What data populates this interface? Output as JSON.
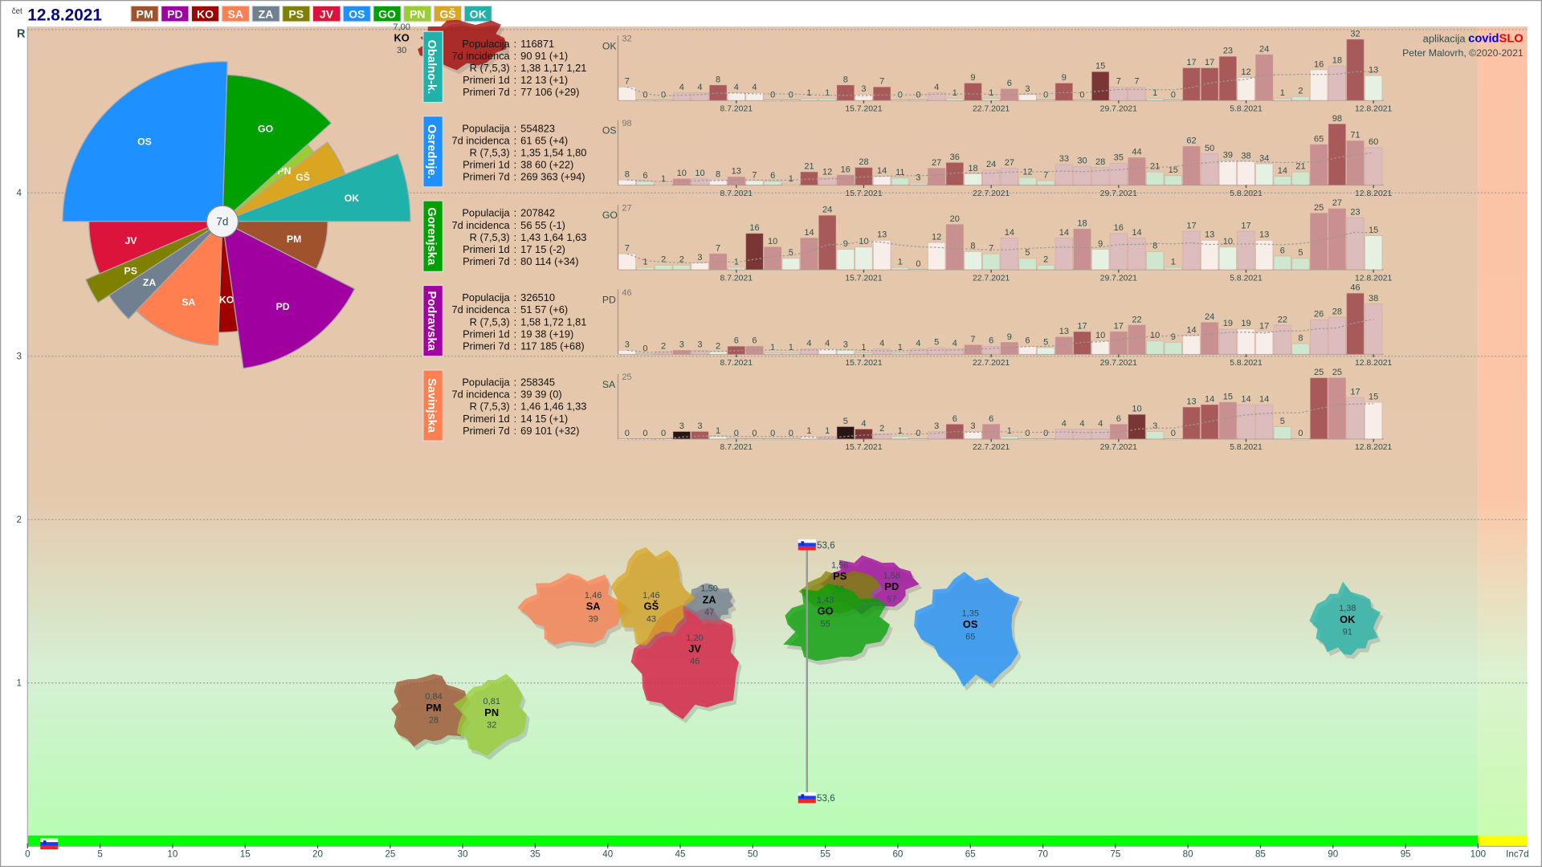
{
  "header": {
    "weekday": "čet",
    "date": "12.8.2021",
    "regions": [
      {
        "code": "PM",
        "color": "#a0522d"
      },
      {
        "code": "PD",
        "color": "#a000a0"
      },
      {
        "code": "KO",
        "color": "#a00000"
      },
      {
        "code": "SA",
        "color": "#ff7f50"
      },
      {
        "code": "ZA",
        "color": "#708090"
      },
      {
        "code": "PS",
        "color": "#808000"
      },
      {
        "code": "JV",
        "color": "#dc143c"
      },
      {
        "code": "OS",
        "color": "#1e90ff"
      },
      {
        "code": "GO",
        "color": "#00a000"
      },
      {
        "code": "PN",
        "color": "#9acd32"
      },
      {
        "code": "GŠ",
        "color": "#daa520"
      },
      {
        "code": "OK",
        "color": "#20b2aa"
      }
    ]
  },
  "credits": {
    "prefix": "aplikacija",
    "app_part1": "covid",
    "app_part2": "SLO",
    "author": "Peter Malovrh, ©2020-2021"
  },
  "info_labels": [
    "Populacija",
    "7d incidenca",
    "R (7,5,3)",
    "Primeri 1d",
    "Primeri 7d"
  ],
  "chart_data": [
    {
      "type": "scatter",
      "ylabel": "R",
      "xlabel": "Inc7d",
      "xlim": [
        0,
        100
      ],
      "ylim": [
        0,
        5
      ],
      "x_ticks": [
        "0",
        "5",
        "10",
        "15",
        "20",
        "25",
        "30",
        "35",
        "40",
        "45",
        "50",
        "55",
        "60",
        "65",
        "70",
        "75",
        "80",
        "85",
        "90",
        "95",
        "100"
      ],
      "y_ticks": [
        "1",
        "2",
        "3",
        "4"
      ],
      "grid": true,
      "points": [
        {
          "code": "KO",
          "R": "7,00",
          "inc": "30",
          "r": 7.0,
          "i": 30
        },
        {
          "code": "PD",
          "R": "1,58",
          "inc": "57",
          "r": 1.58,
          "i": 57
        },
        {
          "code": "PS",
          "R": "1,56",
          "inc": "56",
          "r": 1.56,
          "i": 56
        },
        {
          "code": "GO",
          "R": "1,43",
          "inc": "55",
          "r": 1.43,
          "i": 55
        },
        {
          "code": "OS",
          "R": "1,35",
          "inc": "65",
          "r": 1.35,
          "i": 65
        },
        {
          "code": "OK",
          "R": "1,38",
          "inc": "91",
          "r": 1.38,
          "i": 91
        },
        {
          "code": "JV",
          "R": "1,20",
          "inc": "46",
          "r": 1.2,
          "i": 46
        },
        {
          "code": "SA",
          "R": "1,46",
          "inc": "39",
          "r": 1.46,
          "i": 39
        },
        {
          "code": "ZA",
          "R": "1,50",
          "inc": "47",
          "r": 1.5,
          "i": 47
        },
        {
          "code": "GŠ",
          "R": "1,46",
          "inc": "43",
          "r": 1.46,
          "i": 43
        },
        {
          "code": "PM",
          "R": "0,84",
          "inc": "28",
          "r": 0.84,
          "i": 28
        },
        {
          "code": "PN",
          "R": "0,81",
          "inc": "32",
          "r": 0.81,
          "i": 32
        }
      ],
      "slovenia": {
        "inc": 53.6,
        "label": "53,6"
      }
    },
    {
      "type": "pie",
      "center_label": "7d",
      "top": [
        {
          "code": "OK",
          "share": 11.7,
          "level": 1.0
        },
        {
          "code": "GŠ",
          "share": 8.9,
          "level": 0.7
        },
        {
          "code": "PN",
          "share": 2.8,
          "level": 0.61
        },
        {
          "code": "GO",
          "share": 25.6,
          "level": 0.78
        },
        {
          "code": "OS",
          "share": 51.0,
          "level": 0.85
        }
      ],
      "bottom": [
        {
          "code": "JV",
          "share": 12.8,
          "level": 0.71
        },
        {
          "code": "PS",
          "share": 5.6,
          "level": 0.79
        },
        {
          "code": "ZA",
          "share": 7.2,
          "level": 0.72
        },
        {
          "code": "SA",
          "share": 23.3,
          "level": 0.66
        },
        {
          "code": "KO",
          "share": 5.6,
          "level": 0.59
        },
        {
          "code": "PD",
          "share": 30.5,
          "level": 0.79
        },
        {
          "code": "PM",
          "share": 15.0,
          "level": 0.56
        }
      ]
    },
    {
      "type": "bar",
      "region": "Obalno-k.",
      "code": "OK",
      "color": "#20b2aa",
      "max_label": "32",
      "info": [
        "116871",
        "90 91 (+1)",
        "1,38 1,17 1,21",
        "12 13 (+1)",
        "77 106 (+29)"
      ],
      "date_ticks": [
        "8.7.2021",
        "15.7.2021",
        "22.7.2021",
        "29.7.2021",
        "5.8.2021",
        "12.8.2021"
      ],
      "values": [
        7,
        0,
        0,
        4,
        4,
        8,
        4,
        4,
        0,
        0,
        1,
        1,
        8,
        3,
        7,
        0,
        0,
        4,
        1,
        9,
        1,
        6,
        3,
        0,
        9,
        0,
        15,
        7,
        7,
        1,
        0,
        17,
        17,
        23,
        12,
        24,
        1,
        2,
        16,
        18,
        32,
        13
      ]
    },
    {
      "type": "bar",
      "region": "Osrednje.",
      "code": "OS",
      "color": "#1e90ff",
      "max_label": "98",
      "info": [
        "554823",
        "61 65 (+4)",
        "1,35 1,54 1,80",
        "38 60 (+22)",
        "269 363 (+94)"
      ],
      "date_ticks": [
        "8.7.2021",
        "15.7.2021",
        "22.7.2021",
        "29.7.2021",
        "5.8.2021",
        "12.8.2021"
      ],
      "values": [
        8,
        6,
        1,
        10,
        10,
        8,
        13,
        7,
        6,
        1,
        21,
        12,
        16,
        28,
        14,
        11,
        3,
        27,
        36,
        18,
        24,
        27,
        12,
        7,
        33,
        30,
        28,
        35,
        44,
        21,
        15,
        62,
        50,
        39,
        38,
        34,
        14,
        21,
        65,
        98,
        71,
        60
      ]
    },
    {
      "type": "bar",
      "region": "Gorenjska",
      "code": "GO",
      "color": "#00a000",
      "max_label": "27",
      "info": [
        "207842",
        "56 55 (-1)",
        "1,43 1,64 1,63",
        "17 15 (-2)",
        "80 114 (+34)"
      ],
      "date_ticks": [
        "8.7.2021",
        "15.7.2021",
        "22.7.2021",
        "29.7.2021",
        "5.8.2021",
        "12.8.2021"
      ],
      "values": [
        7,
        1,
        2,
        2,
        3,
        7,
        1,
        16,
        10,
        5,
        14,
        24,
        9,
        10,
        13,
        1,
        0,
        12,
        20,
        8,
        7,
        14,
        5,
        2,
        14,
        18,
        9,
        16,
        14,
        8,
        1,
        17,
        13,
        10,
        17,
        13,
        6,
        5,
        25,
        27,
        23,
        15
      ]
    },
    {
      "type": "bar",
      "region": "Podravska",
      "code": "PD",
      "color": "#a000a0",
      "max_label": "46",
      "info": [
        "326510",
        "51 57 (+6)",
        "1,58 1,72 1,81",
        "19 38 (+19)",
        "117 185 (+68)"
      ],
      "date_ticks": [
        "8.7.2021",
        "15.7.2021",
        "22.7.2021",
        "29.7.2021",
        "5.8.2021",
        "12.8.2021"
      ],
      "values": [
        3,
        0,
        2,
        3,
        3,
        2,
        6,
        6,
        1,
        1,
        4,
        4,
        3,
        1,
        4,
        1,
        4,
        5,
        4,
        7,
        6,
        9,
        6,
        5,
        13,
        17,
        10,
        17,
        22,
        10,
        9,
        14,
        24,
        19,
        19,
        17,
        22,
        8,
        26,
        28,
        46,
        38
      ]
    },
    {
      "type": "bar",
      "region": "Savinjska",
      "code": "SA",
      "color": "#ff7f50",
      "max_label": "25",
      "info": [
        "258345",
        "39 39 (0)",
        "1,46 1,46 1,33",
        "14 15 (+1)",
        "69 101 (+32)"
      ],
      "date_ticks": [
        "8.7.2021",
        "15.7.2021",
        "22.7.2021",
        "29.7.2021",
        "5.8.2021",
        "12.8.2021"
      ],
      "values": [
        0,
        0,
        0,
        3,
        3,
        1,
        0,
        0,
        0,
        0,
        1,
        1,
        5,
        4,
        2,
        1,
        0,
        3,
        6,
        3,
        6,
        1,
        0,
        0,
        4,
        4,
        4,
        6,
        10,
        3,
        0,
        13,
        14,
        15,
        14,
        14,
        5,
        0,
        25,
        25,
        17,
        15
      ]
    }
  ]
}
